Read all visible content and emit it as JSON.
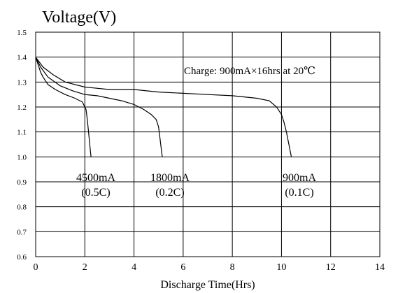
{
  "chart_data": {
    "type": "line",
    "title": "Voltage(V)",
    "xlabel": "Discharge Time(Hrs)",
    "ylabel": "",
    "xlim": [
      0,
      14
    ],
    "ylim": [
      0.6,
      1.5
    ],
    "grid": true,
    "x_ticks": [
      "0",
      "2",
      "4",
      "6",
      "8",
      "10",
      "12",
      "14"
    ],
    "y_ticks": [
      "0.6",
      "0.7",
      "0.8",
      "0.9",
      "1.0",
      "1.1",
      "1.2",
      "1.3",
      "1.4",
      "1.5"
    ],
    "annotation": "Charge: 900mA×16hrs at 20℃",
    "series": [
      {
        "name": "4500mA (0.5C)",
        "rate_label": "4500mA",
        "c_label": "(0.5C)",
        "points": [
          [
            0,
            1.4
          ],
          [
            0.1,
            1.37
          ],
          [
            0.2,
            1.34
          ],
          [
            0.3,
            1.32
          ],
          [
            0.5,
            1.29
          ],
          [
            0.8,
            1.27
          ],
          [
            1.2,
            1.25
          ],
          [
            1.6,
            1.235
          ],
          [
            1.9,
            1.22
          ],
          [
            2.05,
            1.19
          ],
          [
            2.1,
            1.15
          ],
          [
            2.15,
            1.1
          ],
          [
            2.2,
            1.05
          ],
          [
            2.25,
            1.0
          ]
        ]
      },
      {
        "name": "1800mA (0.2C)",
        "rate_label": "1800mA",
        "c_label": "(0.2C)",
        "points": [
          [
            0,
            1.4
          ],
          [
            0.2,
            1.36
          ],
          [
            0.5,
            1.32
          ],
          [
            1.0,
            1.285
          ],
          [
            1.5,
            1.265
          ],
          [
            2.0,
            1.25
          ],
          [
            2.5,
            1.245
          ],
          [
            3.0,
            1.235
          ],
          [
            3.5,
            1.225
          ],
          [
            4.0,
            1.21
          ],
          [
            4.4,
            1.19
          ],
          [
            4.7,
            1.17
          ],
          [
            4.9,
            1.15
          ],
          [
            5.0,
            1.12
          ],
          [
            5.05,
            1.08
          ],
          [
            5.1,
            1.04
          ],
          [
            5.15,
            1.0
          ]
        ]
      },
      {
        "name": "900mA (0.1C)",
        "rate_label": "900mA",
        "c_label": "(0.1C)",
        "points": [
          [
            0,
            1.4
          ],
          [
            0.3,
            1.36
          ],
          [
            0.7,
            1.33
          ],
          [
            1.2,
            1.3
          ],
          [
            2.0,
            1.28
          ],
          [
            3.0,
            1.27
          ],
          [
            4.0,
            1.27
          ],
          [
            5.0,
            1.26
          ],
          [
            6.0,
            1.255
          ],
          [
            7.0,
            1.25
          ],
          [
            8.0,
            1.245
          ],
          [
            9.0,
            1.235
          ],
          [
            9.5,
            1.225
          ],
          [
            9.8,
            1.2
          ],
          [
            10.0,
            1.17
          ],
          [
            10.1,
            1.14
          ],
          [
            10.2,
            1.1
          ],
          [
            10.3,
            1.05
          ],
          [
            10.4,
            1.0
          ]
        ]
      }
    ]
  }
}
